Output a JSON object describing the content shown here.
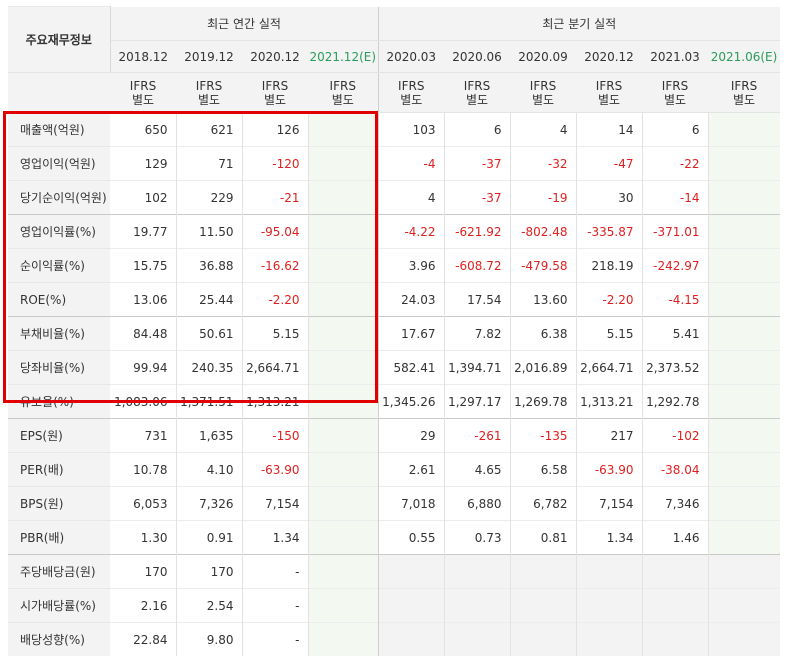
{
  "header": {
    "label_col": "주요재무정보",
    "annual_group": "최근 연간 실적",
    "quarterly_group": "최근 분기 실적"
  },
  "periods": [
    "2018.12",
    "2019.12",
    "2020.12",
    "2021.12(E)",
    "2020.03",
    "2020.06",
    "2020.09",
    "2020.12",
    "2021.03",
    "2021.06(E)"
  ],
  "ifrs_top": "IFRS",
  "ifrs_bottom": "별도",
  "rows": [
    {
      "label": "매출액(억원)",
      "values": [
        "650",
        "621",
        "126",
        "",
        "103",
        "6",
        "4",
        "14",
        "6",
        ""
      ]
    },
    {
      "label": "영업이익(억원)",
      "values": [
        "129",
        "71",
        "-120",
        "",
        "-4",
        "-37",
        "-32",
        "-47",
        "-22",
        ""
      ]
    },
    {
      "label": "당기순이익(억원)",
      "values": [
        "102",
        "229",
        "-21",
        "",
        "4",
        "-37",
        "-19",
        "30",
        "-14",
        ""
      ]
    },
    {
      "label": "영업이익률(%)",
      "values": [
        "19.77",
        "11.50",
        "-95.04",
        "",
        "-4.22",
        "-621.92",
        "-802.48",
        "-335.87",
        "-371.01",
        ""
      ]
    },
    {
      "label": "순이익률(%)",
      "values": [
        "15.75",
        "36.88",
        "-16.62",
        "",
        "3.96",
        "-608.72",
        "-479.58",
        "218.19",
        "-242.97",
        ""
      ]
    },
    {
      "label": "ROE(%)",
      "values": [
        "13.06",
        "25.44",
        "-2.20",
        "",
        "24.03",
        "17.54",
        "13.60",
        "-2.20",
        "-4.15",
        ""
      ]
    },
    {
      "label": "부채비율(%)",
      "values": [
        "84.48",
        "50.61",
        "5.15",
        "",
        "17.67",
        "7.82",
        "6.38",
        "5.15",
        "5.41",
        ""
      ]
    },
    {
      "label": "당좌비율(%)",
      "values": [
        "99.94",
        "240.35",
        "2,664.71",
        "",
        "582.41",
        "1,394.71",
        "2,016.89",
        "2,664.71",
        "2,373.52",
        ""
      ]
    },
    {
      "label": "유보율(%)",
      "values": [
        "1,083.06",
        "1,371.51",
        "1,313.21",
        "",
        "1,345.26",
        "1,297.17",
        "1,269.78",
        "1,313.21",
        "1,292.78",
        ""
      ]
    },
    {
      "label": "EPS(원)",
      "values": [
        "731",
        "1,635",
        "-150",
        "",
        "29",
        "-261",
        "-135",
        "217",
        "-102",
        ""
      ]
    },
    {
      "label": "PER(배)",
      "values": [
        "10.78",
        "4.10",
        "-63.90",
        "",
        "2.61",
        "4.65",
        "6.58",
        "-63.90",
        "-38.04",
        ""
      ]
    },
    {
      "label": "BPS(원)",
      "values": [
        "6,053",
        "7,326",
        "7,154",
        "",
        "7,018",
        "6,880",
        "6,782",
        "7,154",
        "7,346",
        ""
      ]
    },
    {
      "label": "PBR(배)",
      "values": [
        "1.30",
        "0.91",
        "1.34",
        "",
        "0.55",
        "0.73",
        "0.81",
        "1.34",
        "1.46",
        ""
      ]
    },
    {
      "label": "주당배당금(원)",
      "values": [
        "170",
        "170",
        "-",
        "",
        "",
        "",
        "",
        "",
        "",
        ""
      ]
    },
    {
      "label": "시가배당률(%)",
      "values": [
        "2.16",
        "2.54",
        "-",
        "",
        "",
        "",
        "",
        "",
        "",
        ""
      ]
    },
    {
      "label": "배당성향(%)",
      "values": [
        "22.84",
        "9.80",
        "-",
        "",
        "",
        "",
        "",
        "",
        "",
        ""
      ]
    }
  ],
  "colors": {
    "negative": "#e02020",
    "ifrs": "#ff7a1a",
    "estimate_header": "#2a9c5b",
    "highlight": "#e00000"
  }
}
